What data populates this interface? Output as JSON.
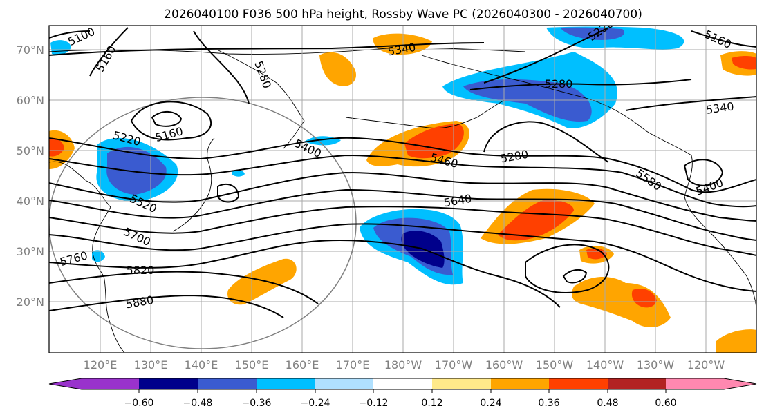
{
  "title": "2026040100 F036 500 hPa height, Rossby Wave PC (2026040300 - 2026040700)",
  "map": {
    "lon_ticks": [
      "120°E",
      "130°E",
      "140°E",
      "150°E",
      "160°E",
      "170°E",
      "180°W",
      "170°W",
      "160°W",
      "150°W",
      "140°W",
      "130°W",
      "120°W"
    ],
    "lat_ticks": [
      "70°N",
      "60°N",
      "50°N",
      "40°N",
      "30°N",
      "20°N"
    ],
    "gridlines": true,
    "contour_color": "#000000",
    "coast_color": "#000000",
    "circle_color": "#808080"
  },
  "height_contour_labels": [
    "5100",
    "5160",
    "5280",
    "5340",
    "5220",
    "5160",
    "5280",
    "5340",
    "5220",
    "5400",
    "5160",
    "5460",
    "5280",
    "5580",
    "5400",
    "5520",
    "5640",
    "5700",
    "5760",
    "5820",
    "5880"
  ],
  "colorbar": {
    "ticks": [
      "−0.60",
      "−0.48",
      "−0.36",
      "−0.24",
      "−0.12",
      "0.12",
      "0.24",
      "0.36",
      "0.48",
      "0.60"
    ],
    "colors": [
      "#9932cc",
      "#00008b",
      "#3a5bd0",
      "#00bfff",
      "#b0e0fe",
      "#ffffff",
      "#ffe98a",
      "#ffa500",
      "#ff4000",
      "#b22222",
      "#ff88b0"
    ]
  }
}
